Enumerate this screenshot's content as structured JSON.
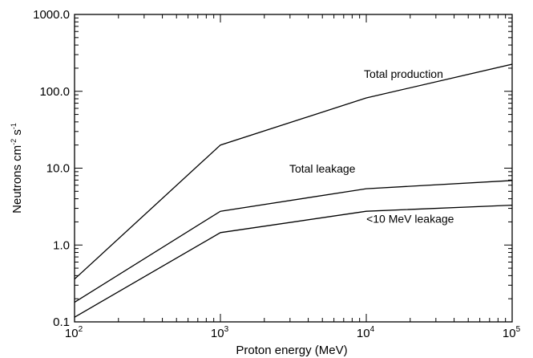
{
  "chart_data": {
    "type": "line",
    "x_scale": "log",
    "y_scale": "log",
    "xlim": [
      100,
      100000
    ],
    "ylim": [
      0.1,
      1000
    ],
    "xlabel": "Proton energy (MeV)",
    "ylabel": {
      "prefix": "Neutrons cm",
      "exp1": "-2",
      "mid": " s",
      "exp2": "-1"
    },
    "x_ticks": [
      {
        "value": 100,
        "base": "10",
        "exp": "2"
      },
      {
        "value": 1000,
        "base": "10",
        "exp": "3"
      },
      {
        "value": 10000,
        "base": "10",
        "exp": "4"
      },
      {
        "value": 100000,
        "base": "10",
        "exp": "5"
      }
    ],
    "y_ticks": [
      {
        "value": 0.1,
        "label": "0.1"
      },
      {
        "value": 1,
        "label": "1.0"
      },
      {
        "value": 10,
        "label": "10.0"
      },
      {
        "value": 100,
        "label": "100.0"
      },
      {
        "value": 1000,
        "label": "1000.0"
      }
    ],
    "series": [
      {
        "x": [
          100,
          1000,
          10000,
          100000
        ],
        "y": [
          0.36,
          20,
          82,
          225
        ]
      },
      {
        "x": [
          100,
          1000,
          10000,
          100000
        ],
        "y": [
          0.18,
          2.75,
          5.4,
          6.9
        ]
      },
      {
        "x": [
          100,
          1000,
          10000,
          100000
        ],
        "y": [
          0.115,
          1.45,
          2.75,
          3.3
        ]
      }
    ],
    "annotations": [
      {
        "text": "Total production",
        "x": 18000,
        "y": 150
      },
      {
        "text": "Total leakage",
        "x": 5000,
        "y": 8.8
      },
      {
        "text": "<10 MeV leakage",
        "x": 20000,
        "y": 1.95
      }
    ]
  }
}
